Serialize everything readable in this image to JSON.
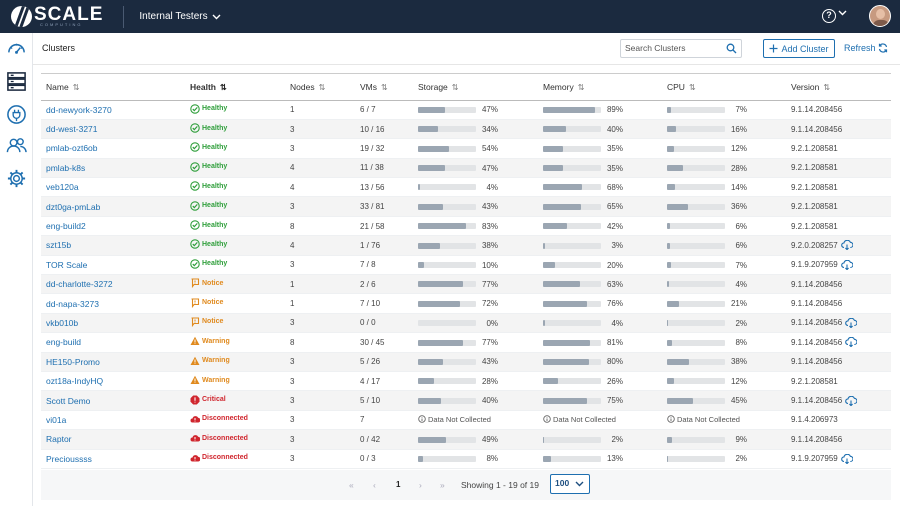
{
  "app": {
    "logo_text": "SCALE",
    "logo_sub": "COMPUTING",
    "tenant": "Internal Testers"
  },
  "header": {
    "help_label": "?"
  },
  "page": {
    "title": "Clusters"
  },
  "toolbar": {
    "search_placeholder": "Search Clusters",
    "add_label": "Add Cluster",
    "refresh_label": "Refresh"
  },
  "table": {
    "columns": [
      "Name",
      "Health",
      "Nodes",
      "VMs",
      "Storage",
      "Memory",
      "CPU",
      "Version"
    ],
    "rows": [
      {
        "name": "dd-newyork-3270",
        "health": "Healthy",
        "nodes": "1",
        "vms": "6 / 7",
        "storage": 47,
        "memory": 89,
        "cpu": 7,
        "version": "9.1.14.208456",
        "update": false
      },
      {
        "name": "dd-west-3271",
        "health": "Healthy",
        "nodes": "3",
        "vms": "10 / 16",
        "storage": 34,
        "memory": 40,
        "cpu": 16,
        "version": "9.1.14.208456",
        "update": false
      },
      {
        "name": "pmlab-ozt6ob",
        "health": "Healthy",
        "nodes": "3",
        "vms": "19 / 32",
        "storage": 54,
        "memory": 35,
        "cpu": 12,
        "version": "9.2.1.208581",
        "update": false
      },
      {
        "name": "pmlab-k8s",
        "health": "Healthy",
        "nodes": "4",
        "vms": "11 / 38",
        "storage": 47,
        "memory": 35,
        "cpu": 28,
        "version": "9.2.1.208581",
        "update": false
      },
      {
        "name": "veb120a",
        "health": "Healthy",
        "nodes": "4",
        "vms": "13 / 56",
        "storage": 4,
        "memory": 68,
        "cpu": 14,
        "version": "9.2.1.208581",
        "update": false
      },
      {
        "name": "dzt0ga-pmLab",
        "health": "Healthy",
        "nodes": "3",
        "vms": "33 / 81",
        "storage": 43,
        "memory": 65,
        "cpu": 36,
        "version": "9.2.1.208581",
        "update": false
      },
      {
        "name": "eng-build2",
        "health": "Healthy",
        "nodes": "8",
        "vms": "21 / 58",
        "storage": 83,
        "memory": 42,
        "cpu": 6,
        "version": "9.2.1.208581",
        "update": false
      },
      {
        "name": "szt15b",
        "health": "Healthy",
        "nodes": "4",
        "vms": "1 / 76",
        "storage": 38,
        "memory": 3,
        "cpu": 6,
        "version": "9.2.0.208257",
        "update": true
      },
      {
        "name": "TOR Scale",
        "health": "Healthy",
        "nodes": "3",
        "vms": "7 / 8",
        "storage": 10,
        "memory": 20,
        "cpu": 7,
        "version": "9.1.9.207959",
        "update": true
      },
      {
        "name": "dd-charlotte-3272",
        "health": "Notice",
        "nodes": "1",
        "vms": "2 / 6",
        "storage": 77,
        "memory": 63,
        "cpu": 4,
        "version": "9.1.14.208456",
        "update": false
      },
      {
        "name": "dd-napa-3273",
        "health": "Notice",
        "nodes": "1",
        "vms": "7 / 10",
        "storage": 72,
        "memory": 76,
        "cpu": 21,
        "version": "9.1.14.208456",
        "update": false
      },
      {
        "name": "vkb010b",
        "health": "Notice",
        "nodes": "3",
        "vms": "0 / 0",
        "storage": 0,
        "memory": 4,
        "cpu": 2,
        "version": "9.1.14.208456",
        "update": true
      },
      {
        "name": "eng-build",
        "health": "Warning",
        "nodes": "8",
        "vms": "30 / 45",
        "storage": 77,
        "memory": 81,
        "cpu": 8,
        "version": "9.1.14.208456",
        "update": true
      },
      {
        "name": "HE150-Promo",
        "health": "Warning",
        "nodes": "3",
        "vms": "5 / 26",
        "storage": 43,
        "memory": 80,
        "cpu": 38,
        "version": "9.1.14.208456",
        "update": false
      },
      {
        "name": "ozt18a-IndyHQ",
        "health": "Warning",
        "nodes": "3",
        "vms": "4 / 17",
        "storage": 28,
        "memory": 26,
        "cpu": 12,
        "version": "9.2.1.208581",
        "update": false
      },
      {
        "name": "Scott Demo",
        "health": "Critical",
        "nodes": "3",
        "vms": "5 / 10",
        "storage": 40,
        "memory": 75,
        "cpu": 45,
        "version": "9.1.14.208456",
        "update": true
      },
      {
        "name": "vi01a",
        "health": "Disconnected",
        "nodes": "3",
        "vms": "7",
        "storage": null,
        "memory": null,
        "cpu": null,
        "version": "9.1.4.206973",
        "update": false
      },
      {
        "name": "Raptor",
        "health": "Disconnected",
        "nodes": "3",
        "vms": "0 / 42",
        "storage": 49,
        "memory": 2,
        "cpu": 9,
        "version": "9.1.14.208456",
        "update": false
      },
      {
        "name": "Precioussss",
        "health": "Disconnected",
        "nodes": "3",
        "vms": "0 / 3",
        "storage": 8,
        "memory": 13,
        "cpu": 2,
        "version": "9.1.9.207959",
        "update": true
      }
    ],
    "not_collected_label": "Data Not Collected"
  },
  "pager": {
    "current": "1",
    "info": "Showing 1 - 19 of 19",
    "page_size": "100"
  },
  "colors": {
    "topbar": "#1b2a3f",
    "accent": "#1e6fb0",
    "Healthy": "#2e9e3a",
    "Notice": "#e08a1e",
    "Warning": "#e08a1e",
    "Critical": "#d0262e",
    "Disconnected": "#d0262e"
  }
}
